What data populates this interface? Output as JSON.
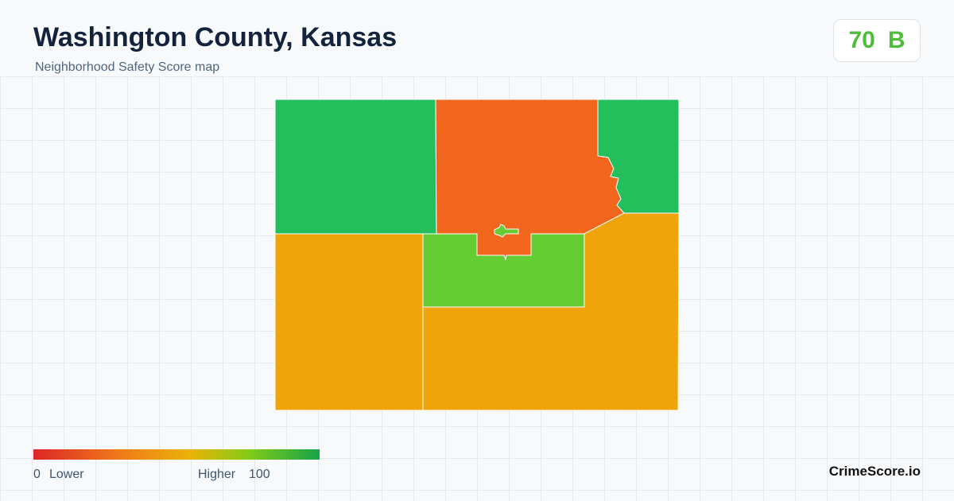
{
  "header": {
    "title": "Washington County, Kansas",
    "subtitle": "Neighborhood Safety Score map"
  },
  "score": {
    "value": "70",
    "grade": "B"
  },
  "legend": {
    "min": "0",
    "min_label": "Lower",
    "max_label": "Higher",
    "max": "100"
  },
  "brand": "CrimeScore.io"
}
